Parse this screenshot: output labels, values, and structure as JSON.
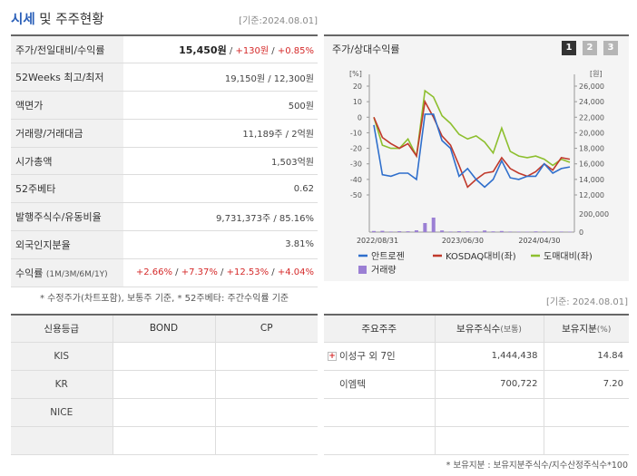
{
  "header": {
    "title_accent": "시세",
    "title_rest": " 및 주주현황",
    "basis": "[기준:2024.08.01]"
  },
  "quote": {
    "rows": [
      {
        "label": "주가/전일대비/수익률",
        "price": "15,450원",
        "sep1": " / ",
        "change": "+130원",
        "sep2": " / ",
        "rate": "+0.85%"
      },
      {
        "label": "52Weeks 최고/최저",
        "value": "19,150원 / 12,300원"
      },
      {
        "label": "액면가",
        "value": "500원"
      },
      {
        "label": "거래량/거래대금",
        "value": "11,189주 / 2억원"
      },
      {
        "label": "시가총액",
        "value": "1,503억원"
      },
      {
        "label": "52주베타",
        "value": "0.62"
      },
      {
        "label": "발행주식수/유동비율",
        "value": "9,731,373주 / 85.16%"
      },
      {
        "label": "외국인지분율",
        "value": "3.81%"
      },
      {
        "label": "수익률",
        "label_small": "(1M/3M/6M/1Y)",
        "r1": "+2.66%",
        "r2": "+7.37%",
        "r3": "+12.53%",
        "r4": "+4.04%",
        "sep": " / "
      }
    ],
    "note": "* 수정주가(차트포함), 보통주 기준, * 52주베타: 주간수익률 기준"
  },
  "chart_panel": {
    "title": "주가/상대수익률",
    "tabs": [
      "1",
      "2",
      "3"
    ],
    "active_tab": "1"
  },
  "chart_data": {
    "type": "line",
    "left_axis": {
      "unit": "[%]",
      "ticks": [
        20,
        10,
        0,
        -10,
        -20,
        -30,
        -40,
        -50
      ],
      "range": [
        -50,
        20
      ]
    },
    "right_axis": {
      "unit": "[원]",
      "ticks": [
        "26,000",
        "24,000",
        "22,000",
        "20,000",
        "18,000",
        "16,000",
        "14,000",
        "12,000"
      ],
      "range": [
        12000,
        26000
      ]
    },
    "volume_axis": {
      "ticks": [
        "200,000",
        "0"
      ],
      "range": [
        0,
        200000
      ]
    },
    "x_ticks": [
      "2022/08/31",
      "2023/06/30",
      "2024/04/30"
    ],
    "series": [
      {
        "name": "안트로젠",
        "color": "#2f6fcc",
        "values": [
          -5,
          -37,
          -38,
          -36,
          -36,
          -40,
          2,
          2,
          -15,
          -20,
          -38,
          -33,
          -40,
          -45,
          -40,
          -28,
          -39,
          -40,
          -38,
          -38,
          -30,
          -36,
          -33,
          -32
        ]
      },
      {
        "name": "KOSDAQ대비(좌)",
        "color": "#c0392b",
        "values": [
          0,
          -13,
          -17,
          -20,
          -17,
          -25,
          10,
          0,
          -12,
          -18,
          -31,
          -45,
          -40,
          -36,
          -35,
          -26,
          -33,
          -36,
          -38,
          -35,
          -30,
          -34,
          -26,
          -27
        ]
      },
      {
        "name": "도매대비(좌)",
        "color": "#8dbf2e",
        "values": [
          0,
          -18,
          -20,
          -20,
          -14,
          -25,
          17,
          13,
          1,
          -4,
          -11,
          -14,
          -12,
          -16,
          -23,
          -7,
          -22,
          -25,
          -26,
          -25,
          -27,
          -31,
          -27,
          -29
        ]
      },
      {
        "name": "거래량",
        "color": "#9b7fd4",
        "volumes": [
          12000,
          14000,
          6000,
          10000,
          9000,
          20000,
          100000,
          160000,
          18000,
          6000,
          10000,
          8000,
          6000,
          18000,
          8000,
          12000,
          6000,
          5000,
          4000,
          8000,
          6000,
          5000,
          6000,
          5000
        ]
      }
    ]
  },
  "credit": {
    "headers": [
      "신용등급",
      "BOND",
      "CP"
    ],
    "rows": [
      {
        "agency": "KIS",
        "bond": "",
        "cp": ""
      },
      {
        "agency": "KR",
        "bond": "",
        "cp": ""
      },
      {
        "agency": "NICE",
        "bond": "",
        "cp": ""
      },
      {
        "agency": "",
        "bond": "",
        "cp": ""
      }
    ]
  },
  "holders": {
    "basis": "[기준: 2024.08.01]",
    "headers": {
      "holder": "주요주주",
      "shares": "보유주식수",
      "shares_unit": "(보통)",
      "pct": "보유지분",
      "pct_unit": "(%)"
    },
    "rows": [
      {
        "name": "이성구 외 7인",
        "shares": "1,444,438",
        "pct": "14.84",
        "expandable": true
      },
      {
        "name": "이엠텍",
        "shares": "700,722",
        "pct": "7.20",
        "expandable": false
      },
      {
        "name": "",
        "shares": "",
        "pct": ""
      },
      {
        "name": "",
        "shares": "",
        "pct": ""
      }
    ],
    "note": "* 보유지분 : 보유지분주식수/지수산정주식수*100"
  }
}
